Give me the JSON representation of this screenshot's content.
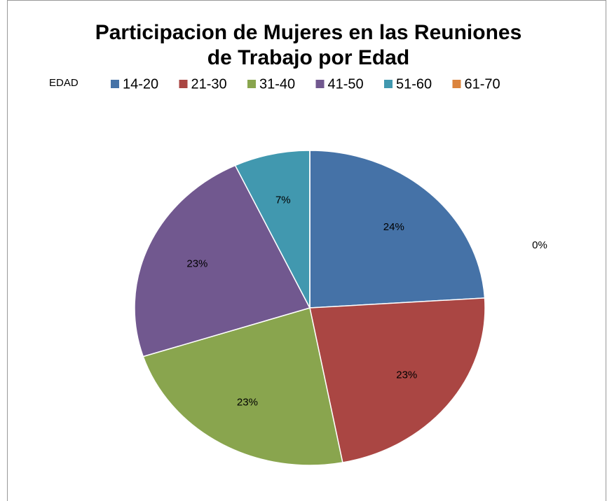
{
  "chart_data": {
    "type": "pie",
    "title": [
      "Participacion de Mujeres en las Reuniones",
      "de Trabajo por  Edad"
    ],
    "legend_title": "EDAD",
    "categories": [
      "14-20",
      "21-30",
      "31-40",
      "41-50",
      "51-60",
      "61-70"
    ],
    "values": [
      24,
      23,
      23,
      23,
      7,
      0
    ],
    "value_labels": [
      "24%",
      "23%",
      "23%",
      "23%",
      "7%",
      "0%"
    ],
    "colors": [
      "#4572a7",
      "#aa4643",
      "#89a54e",
      "#71588f",
      "#4198af",
      "#db843d"
    ],
    "legend": "top"
  }
}
